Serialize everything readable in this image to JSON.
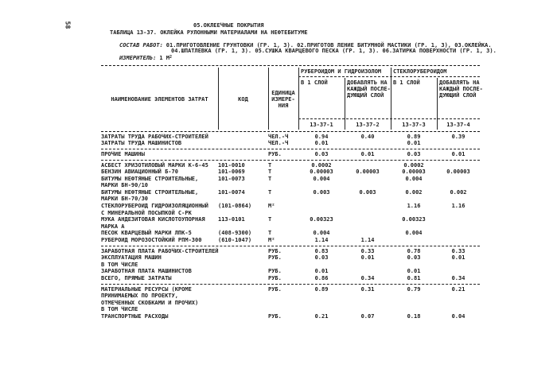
{
  "page": {
    "number": "58"
  },
  "header": {
    "section_title": "05.ОКЛЕЕЧНЫЕ ПОКРЫТИЯ",
    "table_title": "ТАБЛИЦА 13-37. ОКЛЕЙКА РУЛОННЫМИ МАТЕРИАЛАМИ НА НЕФТЕБИТУМЕ",
    "sostav_label": "СОСТАВ РАБОТ:",
    "sostav_line1": "01.ПРИГОТОВЛЕНИЕ ГРУНТОВКИ (ГР. 1, 3). 02.ПРИГОТОВ ЛЕНИЕ БИТУМНОЙ МАСТИКИ (ГР. 1, 3), 03.ОКЛЕЙКА.",
    "sostav_line2": "04.ШПАТЛЕВКА (ГР. 1, 3). 05.СУШКА КВАРЦЕВОГО ПЕСКА (ГР. 1, 3). 06.ЗАТИРКА ПОВЕРХНОСТИ (ГР. 1, 3).",
    "izmeritel_label": "ИЗМЕРИТЕЛЬ:",
    "izmeritel_value": "1 М",
    "izmeritel_sup": "2"
  },
  "table": {
    "header": {
      "name": "НАИМЕНОВАНИЕ ЭЛЕМЕНТОВ ЗАТРАТ",
      "code": "КОД",
      "unit_lines": [
        "ЕДИНИЦА",
        "ИЗМЕРЕ-",
        "НИЯ"
      ],
      "group1": "РУБЕРОИДОМ И ГИДРОИЗОЛОМ",
      "group2": "СТЕКЛОРУБЕРОИДОМ",
      "one_layer": "В 1 СЛОЙ",
      "add_lines": [
        "ДОБАВЛЯТЬ НА",
        "КАЖДЫЙ ПОСЛЕ-",
        "ДУЮЩИЙ СЛОЙ"
      ],
      "norm_codes": [
        "13-37-1",
        "13-37-2",
        "13-37-3",
        "13-37-4"
      ]
    },
    "sections": [
      {
        "rows": [
          {
            "name": [
              "ЗАТРАТЫ ТРУДА РАБОЧИХ-СТРОИТЕЛЕЙ"
            ],
            "code": "",
            "unit": "ЧЕЛ.-Ч",
            "v": [
              "0.94",
              "0.40",
              "0.89",
              "0.39"
            ]
          },
          {
            "name": [
              "ЗАТРАТЫ ТРУДА МАШИНИСТОВ"
            ],
            "code": "",
            "unit": "ЧЕЛ.-Ч",
            "v": [
              "0.01",
              "",
              "0.01",
              ""
            ]
          }
        ]
      },
      {
        "rows": [
          {
            "name": [
              "ПРОЧИЕ МАШИНЫ"
            ],
            "code": "",
            "unit": "РУБ.",
            "v": [
              "0.03",
              "0.01",
              "0.03",
              "0.01"
            ]
          }
        ]
      },
      {
        "rows": [
          {
            "name": [
              "АСБЕСТ ХРИЗОТИЛОВЫЙ МАРКИ К-6-45"
            ],
            "code": "101-0010",
            "unit": "Т",
            "v": [
              "0.0002",
              "",
              "0.0002",
              ""
            ]
          },
          {
            "name": [
              "БЕНЗИН АВИАЦИОННЫЙ Б-70"
            ],
            "code": "101-0069",
            "unit": "Т",
            "v": [
              "0.00003",
              "0.00003",
              "0.00003",
              "0.00003"
            ]
          },
          {
            "name": [
              "БИТУМЫ НЕФТЯНЫЕ СТРОИТЕЛЬНЫЕ,",
              "МАРКИ БН-90/10"
            ],
            "code": "101-0073",
            "unit": "Т",
            "v": [
              "0.004",
              "",
              "0.004",
              ""
            ]
          },
          {
            "name": [
              "БИТУМЫ НЕФТЯНЫЕ СТРОИТЕЛЬНЫЕ,",
              "МАРКИ БН-70/30"
            ],
            "code": "101-0074",
            "unit": "Т",
            "v": [
              "0.003",
              "0.003",
              "0.002",
              "0.002"
            ]
          },
          {
            "name": [
              "СТЕКЛОРУБЕРОИД ГИДРОИЗОЛЯЦИОННЫЙ",
              "С МИНЕРАЛЬНОЙ ПОСЫПКОЙ С-РК"
            ],
            "code": "(101-0864)",
            "unit": "М²",
            "v": [
              "",
              "",
              "1.16",
              "1.16"
            ]
          },
          {
            "name": [
              "МУКА АНДЕЗИТОВАЯ КИСЛОТОУПОРНАЯ",
              "МАРКА А"
            ],
            "code": "113-0101",
            "unit": "Т",
            "v": [
              "0.00323",
              "",
              "0.00323",
              ""
            ]
          },
          {
            "name": [
              "ПЕСОК КВАРЦЕВЫЙ МАРКИ ЛПК-5"
            ],
            "code": "(408-9300)",
            "unit": "Т",
            "v": [
              "0.004",
              "",
              "0.004",
              ""
            ]
          },
          {
            "name": [
              "РУБЕРОИД МОРОЗОСТОЙКИЙ РПМ-300"
            ],
            "code": "(610-1047)",
            "unit": "М²",
            "v": [
              "1.14",
              "1.14",
              "",
              ""
            ]
          }
        ]
      },
      {
        "rows": [
          {
            "name": [
              "ЗАРАБОТНАЯ ПЛАТА РАБОЧИХ-СТРОИТЕЛЕЙ"
            ],
            "code": "",
            "unit": "РУБ.",
            "v": [
              "0.83",
              "0.33",
              "0.78",
              "0.33"
            ]
          },
          {
            "name": [
              "ЭКСПЛУАТАЦИЯ МАШИН",
              "В ТОМ ЧИСЛЕ"
            ],
            "code": "",
            "unit": "РУБ.",
            "v": [
              "0.03",
              "0.01",
              "0.03",
              "0.01"
            ]
          },
          {
            "name": [
              "ЗАРАБОТНАЯ ПЛАТА МАШИНИСТОВ"
            ],
            "code": "",
            "unit": "РУБ.",
            "v": [
              "0.01",
              "",
              "0.01",
              ""
            ]
          },
          {
            "name": [
              "ВСЕГО, ПРЯМЫЕ ЗАТРАТЫ"
            ],
            "code": "",
            "unit": "РУБ.",
            "v": [
              "0.86",
              "0.34",
              "0.81",
              "0.34"
            ]
          }
        ]
      },
      {
        "rows": [
          {
            "name": [
              "МАТЕРИАЛЬНЫЕ РЕСУРСЫ (КРОМЕ",
              "ПРИНИМАЕМЫХ ПО ПРОЕКТУ,",
              "ОТМЕЧЕННЫХ СКОБКАМИ И ПРОЧИХ)",
              "В ТОМ ЧИСЛЕ"
            ],
            "code": "",
            "unit": "РУБ.",
            "v": [
              "0.89",
              "0.31",
              "0.79",
              "0.21"
            ]
          },
          {
            "name": [
              "ТРАНСПОРТНЫЕ РАСХОДЫ"
            ],
            "code": "",
            "unit": "РУБ.",
            "v": [
              "0.21",
              "0.07",
              "0.18",
              "0.04"
            ]
          }
        ]
      }
    ]
  }
}
